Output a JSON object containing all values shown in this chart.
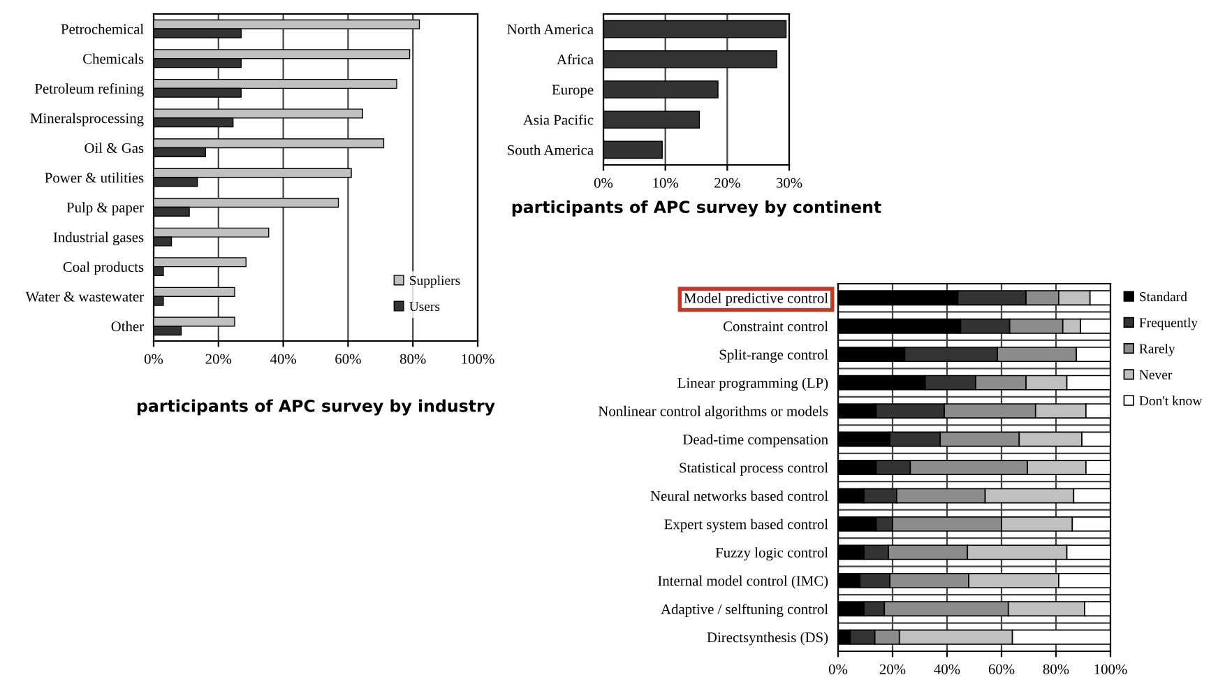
{
  "chart_data": [
    {
      "type": "bar",
      "orientation": "horizontal",
      "title": "participants of APC survey by industry",
      "categories": [
        "Petrochemical",
        "Chemicals",
        "Petroleum refining",
        "Mineralsprocessing",
        "Oil & Gas",
        "Power & utilities",
        "Pulp & paper",
        "Industrial gases",
        "Coal products",
        "Water & wastewater",
        "Other"
      ],
      "series": [
        {
          "name": "Suppliers",
          "color": "#c0c0c0",
          "values": [
            82,
            79,
            75,
            64.5,
            71,
            61,
            57,
            35.5,
            28.5,
            25,
            25
          ]
        },
        {
          "name": "Users",
          "color": "#333333",
          "values": [
            27,
            27,
            27,
            24.5,
            16,
            13.5,
            11,
            5.5,
            3,
            3,
            8.5
          ]
        }
      ],
      "xlim": [
        0,
        100
      ],
      "xticks": [
        {
          "value": 0,
          "label": "0%"
        },
        {
          "value": 20,
          "label": "20%"
        },
        {
          "value": 40,
          "label": "40%"
        },
        {
          "value": 60,
          "label": "60%"
        },
        {
          "value": 80,
          "label": "80%"
        },
        {
          "value": 100,
          "label": "100%"
        }
      ],
      "grid": "x",
      "legend": "bottom right"
    },
    {
      "type": "bar",
      "orientation": "horizontal",
      "title": "participants of APC survey by continent",
      "categories": [
        "North America",
        "Africa",
        "Europe",
        "Asia Pacific",
        "South America"
      ],
      "series": [
        {
          "color": "#333333",
          "values": [
            29.5,
            28,
            18.5,
            15.5,
            9.5
          ]
        }
      ],
      "xlim": [
        0,
        30
      ],
      "xticks": [
        {
          "value": 0,
          "label": "0%"
        },
        {
          "value": 10,
          "label": "10%"
        },
        {
          "value": 20,
          "label": "20%"
        },
        {
          "value": 30,
          "label": "30%"
        }
      ],
      "grid": "x"
    },
    {
      "type": "bar",
      "orientation": "horizontal",
      "stacked": true,
      "categories": [
        "Model predictive control",
        "Constraint control",
        "Split-range control",
        "Linear programming (LP)",
        "Nonlinear control algorithms or models",
        "Dead-time compensation",
        "Statistical process control",
        "Neural networks based control",
        "Expert system based control",
        "Fuzzy logic control",
        "Internal model control (IMC)",
        "Adaptive / selftuning control",
        "Directsynthesis (DS)"
      ],
      "series": [
        {
          "name": "Standard",
          "color": "#000000",
          "values": [
            44,
            45,
            24.5,
            32,
            14,
            19,
            14,
            9.5,
            14,
            9.5,
            8,
            9.5,
            4.5
          ]
        },
        {
          "name": "Frequently",
          "color": "#333333",
          "values": [
            25,
            18,
            34,
            18.5,
            25,
            18.5,
            12.5,
            12,
            6,
            9,
            11,
            7.5,
            9
          ]
        },
        {
          "name": "Rarely",
          "color": "#8c8c8c",
          "values": [
            12,
            19.5,
            29,
            18.5,
            33.5,
            29,
            43,
            32.5,
            40,
            29,
            29,
            45.5,
            9
          ]
        },
        {
          "name": "Never",
          "color": "#c0c0c0",
          "values": [
            11.5,
            6.5,
            0,
            15,
            18.5,
            23,
            21.5,
            32.5,
            26,
            36.5,
            33,
            28,
            41.5
          ]
        },
        {
          "name": "Don't know",
          "color": "#ffffff",
          "values": [
            7.5,
            11,
            12.5,
            16,
            9,
            10.5,
            9,
            13.5,
            14,
            16,
            19,
            9.5,
            36
          ]
        }
      ],
      "xlim": [
        0,
        100
      ],
      "xticks": [
        {
          "value": 0,
          "label": "0%"
        },
        {
          "value": 20,
          "label": "20%"
        },
        {
          "value": 40,
          "label": "40%"
        },
        {
          "value": 60,
          "label": "60%"
        },
        {
          "value": 80,
          "label": "80%"
        },
        {
          "value": 100,
          "label": "100%"
        }
      ],
      "grid": true,
      "legend": "right"
    }
  ]
}
